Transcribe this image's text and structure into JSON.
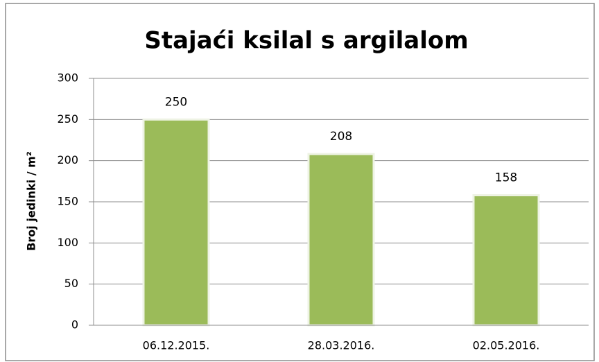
{
  "chart_data": {
    "type": "bar",
    "title": "Stajaći ksilal s argilalom",
    "y_label": "Broj jedinki / m²",
    "categories": [
      "06.12.2015.",
      "28.03.2016.",
      "02.05.2016."
    ],
    "values": [
      250,
      208,
      158
    ],
    "color": "#9bbb59",
    "ylim": [
      0,
      300
    ],
    "yticks": [
      0,
      50,
      100,
      150,
      200,
      250,
      300
    ],
    "grid": true
  }
}
